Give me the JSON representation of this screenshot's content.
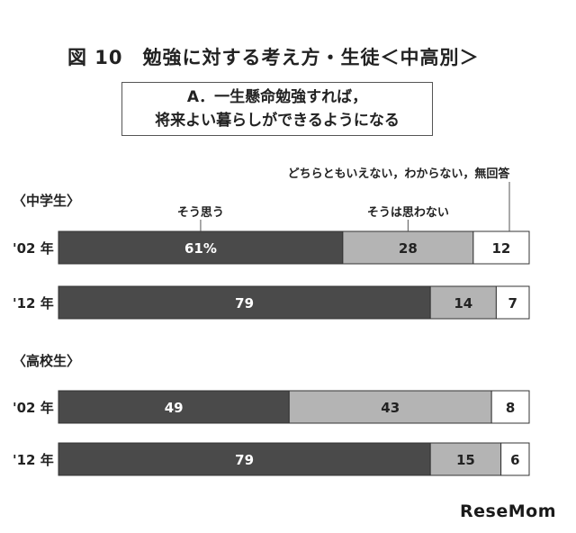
{
  "title": "図 10　勉強に対する考え方・生徒＜中高別＞",
  "question": {
    "line1": "A．一生懸命勉強すれば，",
    "line2": "将来よい暮らしができるようになる"
  },
  "brand": "ReseMom",
  "colors": {
    "yes": "#4a4a4a",
    "no": "#b4b4b4",
    "other": "#ffffff",
    "outline": "#333333"
  },
  "chart_data": {
    "type": "bar",
    "orientation": "horizontal-stacked-100",
    "legend": {
      "yes": "そう思う",
      "no": "そうは思わない",
      "other": "どちらともいえない，わからない，無回答"
    },
    "groups": [
      {
        "name": "〈中学生〉",
        "rows": [
          {
            "label": "'02 年",
            "values": [
              61,
              28,
              12
            ],
            "labels": [
              "61%",
              "28",
              "12"
            ]
          },
          {
            "label": "'12 年",
            "values": [
              79,
              14,
              7
            ],
            "labels": [
              "79",
              "14",
              "7"
            ]
          }
        ]
      },
      {
        "name": "〈高校生〉",
        "rows": [
          {
            "label": "'02 年",
            "values": [
              49,
              43,
              8
            ],
            "labels": [
              "49",
              "43",
              "8"
            ]
          },
          {
            "label": "'12 年",
            "values": [
              79,
              15,
              6
            ],
            "labels": [
              "79",
              "15",
              "6"
            ]
          }
        ]
      }
    ]
  }
}
